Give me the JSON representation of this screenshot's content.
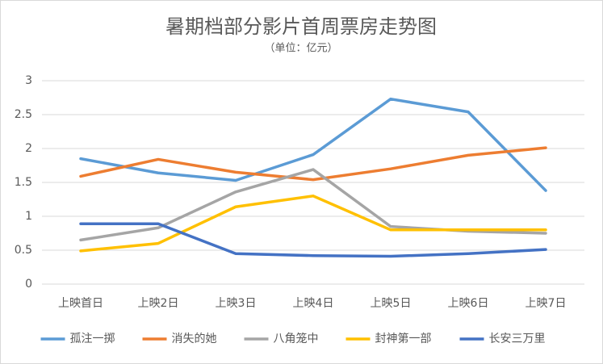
{
  "chart_data": {
    "type": "line",
    "title": "暑期档部分影片首周票房走势图",
    "subtitle": "（单位：亿元）",
    "categories": [
      "上映首日",
      "上映2日",
      "上映3日",
      "上映4日",
      "上映5日",
      "上映6日",
      "上映7日"
    ],
    "series": [
      {
        "name": "孤注一掷",
        "color": "#5b9bd5",
        "values": [
          1.85,
          1.64,
          1.53,
          1.91,
          2.73,
          2.54,
          1.38
        ]
      },
      {
        "name": "消失的她",
        "color": "#ed7d31",
        "values": [
          1.59,
          1.84,
          1.65,
          1.54,
          1.7,
          1.9,
          2.01
        ]
      },
      {
        "name": "八角笼中",
        "color": "#a5a5a5",
        "values": [
          0.65,
          0.83,
          1.36,
          1.69,
          0.85,
          0.78,
          0.75
        ]
      },
      {
        "name": "封神第一部",
        "color": "#ffc000",
        "values": [
          0.49,
          0.6,
          1.14,
          1.3,
          0.8,
          0.8,
          0.8
        ]
      },
      {
        "name": "长安三万里",
        "color": "#4472c4",
        "values": [
          0.89,
          0.89,
          0.45,
          0.42,
          0.41,
          0.45,
          0.51
        ]
      }
    ],
    "ylim": [
      0,
      3
    ],
    "yticks": [
      0,
      0.5,
      1,
      1.5,
      2,
      2.5,
      3
    ],
    "grid": true
  }
}
